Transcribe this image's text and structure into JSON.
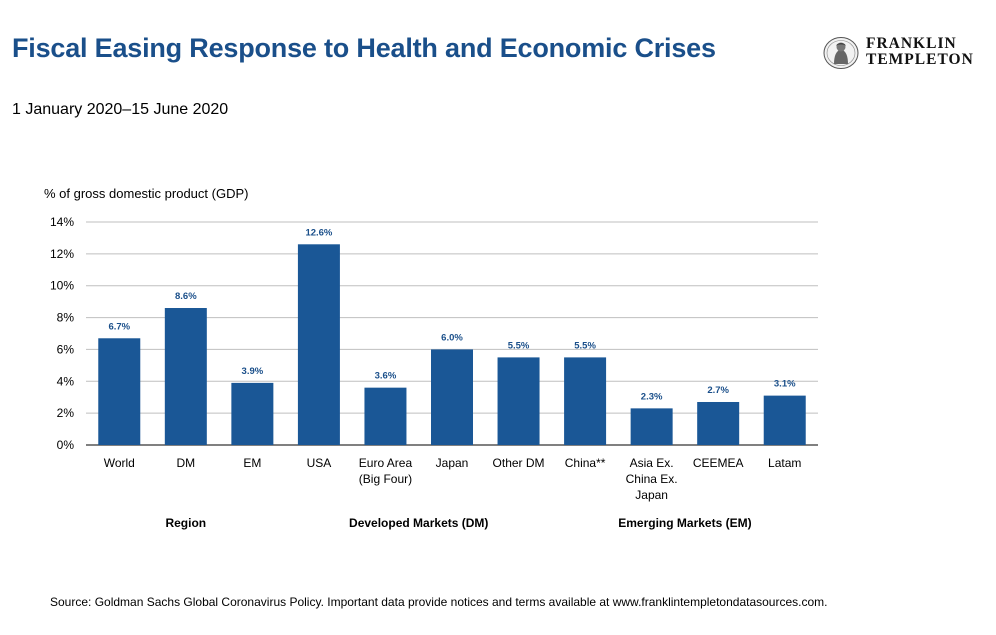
{
  "header": {
    "title": "Fiscal Easing Response to Health and Economic Crises",
    "subtitle": "1 January 2020–15 June 2020"
  },
  "logo": {
    "line1": "FRANKLIN",
    "line2": "TEMPLETON",
    "icon": "benjamin-franklin-seal-icon"
  },
  "footer": {
    "source": "Source: Goldman Sachs Global Coronavirus Policy. Important data provide notices and terms available at www.franklintempletondatasources.com."
  },
  "chart_data": {
    "type": "bar",
    "title": "",
    "ylabel": "% of gross domestic product (GDP)",
    "xlabel": "",
    "ylim": [
      0,
      14
    ],
    "yticks": [
      0,
      2,
      4,
      6,
      8,
      10,
      12,
      14
    ],
    "ytick_labels": [
      "0%",
      "2%",
      "4%",
      "6%",
      "8%",
      "10%",
      "12%",
      "14%"
    ],
    "grid": true,
    "categories": [
      "World",
      "DM",
      "EM",
      "USA",
      "Euro Area (Big Four)",
      "Japan",
      "Other DM",
      "China**",
      "Asia Ex. China Ex. Japan",
      "CEEMEA",
      "Latam"
    ],
    "category_lines": [
      [
        "World"
      ],
      [
        "DM"
      ],
      [
        "EM"
      ],
      [
        "USA"
      ],
      [
        "Euro Area",
        "(Big Four)"
      ],
      [
        "Japan"
      ],
      [
        "Other DM"
      ],
      [
        "China**"
      ],
      [
        "Asia Ex.",
        "China Ex.",
        "Japan"
      ],
      [
        "CEEMEA"
      ],
      [
        "Latam"
      ]
    ],
    "values": [
      6.7,
      8.6,
      3.9,
      12.6,
      3.6,
      6.0,
      5.5,
      5.5,
      2.3,
      2.7,
      3.1
    ],
    "data_labels": [
      "6.7%",
      "8.6%",
      "3.9%",
      "12.6%",
      "3.6%",
      "6.0%",
      "5.5%",
      "5.5%",
      "2.3%",
      "2.7%",
      "3.1%"
    ],
    "groups": [
      {
        "label": "Region",
        "first": 0,
        "last": 2
      },
      {
        "label": "Developed Markets (DM)",
        "first": 3,
        "last": 6
      },
      {
        "label": "Emerging Markets (EM)",
        "first": 7,
        "last": 10
      }
    ],
    "bar_color": "#1a5796"
  }
}
